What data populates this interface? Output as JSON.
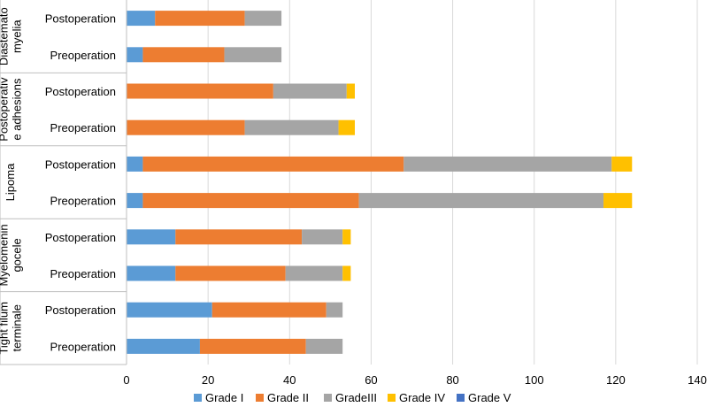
{
  "chart_data": {
    "type": "bar",
    "orientation": "horizontal",
    "stacked": true,
    "groups": [
      {
        "label": "Diastematomyelia",
        "label_lines": [
          "Diastemato",
          "myelia"
        ],
        "rows": [
          {
            "label": "Postoperation",
            "values": [
              7,
              22,
              9,
              0,
              0
            ]
          },
          {
            "label": "Preoperation",
            "values": [
              4,
              20,
              14,
              0,
              0
            ]
          }
        ]
      },
      {
        "label": "Postoperative adhesions",
        "label_lines": [
          "Postoperativ",
          "e adhesions"
        ],
        "rows": [
          {
            "label": "Postoperation",
            "values": [
              0,
              36,
              18,
              2,
              0
            ]
          },
          {
            "label": "Preoperation",
            "values": [
              0,
              29,
              23,
              4,
              0
            ]
          }
        ]
      },
      {
        "label": "Lipoma",
        "label_lines": [
          "Lipoma"
        ],
        "rows": [
          {
            "label": "Postoperation",
            "values": [
              4,
              64,
              51,
              5,
              0
            ]
          },
          {
            "label": "Preoperation",
            "values": [
              4,
              53,
              60,
              7,
              0
            ]
          }
        ]
      },
      {
        "label": "Myelomeningocele",
        "label_lines": [
          "Myelomenin",
          "gocele"
        ],
        "rows": [
          {
            "label": "Postoperation",
            "values": [
              12,
              31,
              10,
              2,
              0
            ]
          },
          {
            "label": "Preoperation",
            "values": [
              12,
              27,
              14,
              2,
              0
            ]
          }
        ]
      },
      {
        "label": "Tight filum terminale",
        "label_lines": [
          "Tight filum",
          "terminale"
        ],
        "rows": [
          {
            "label": "Postoperation",
            "values": [
              21,
              28,
              4,
              0,
              0
            ]
          },
          {
            "label": "Preoperation",
            "values": [
              18,
              26,
              9,
              0,
              0
            ]
          }
        ]
      }
    ],
    "series": [
      {
        "name": "Grade I",
        "color": "#5b9bd5"
      },
      {
        "name": "Grade II",
        "color": "#ed7d31"
      },
      {
        "name": "GradeIII",
        "color": "#a5a5a5"
      },
      {
        "name": "Grade IV",
        "color": "#ffc000"
      },
      {
        "name": "Grade V",
        "color": "#4472c4"
      }
    ],
    "xlim": [
      0,
      140
    ],
    "xticks": [
      0,
      20,
      40,
      60,
      80,
      100,
      120,
      140
    ],
    "grid": true,
    "legend": "bottom"
  }
}
